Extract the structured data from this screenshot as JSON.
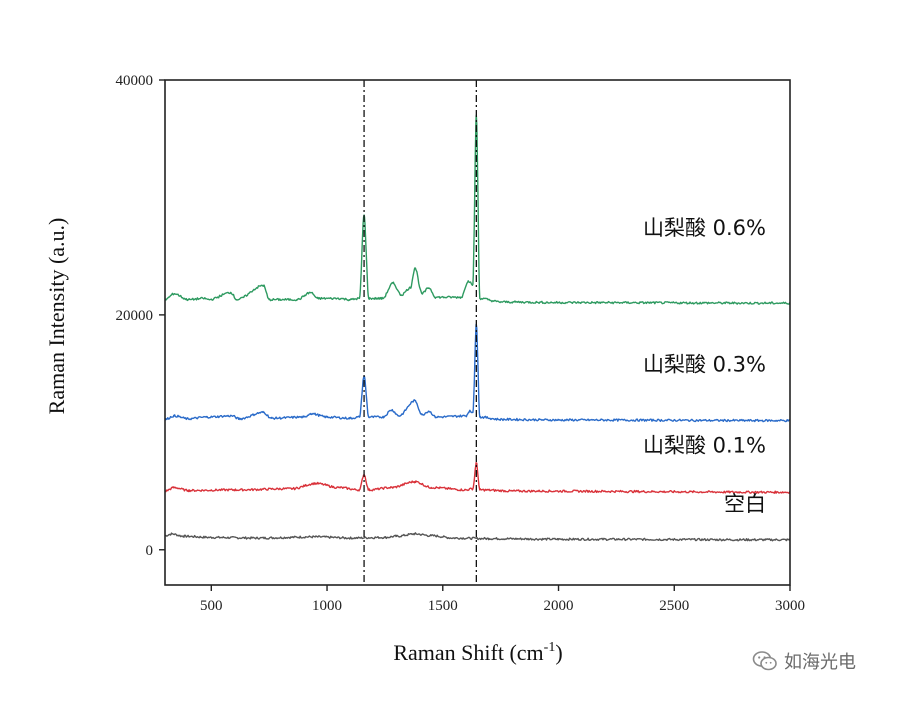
{
  "chart_data": {
    "type": "line",
    "title": "",
    "xlabel": "Raman Shift (cm",
    "xlabel_sup": "-1",
    "xlabel_close": ")",
    "ylabel": "Raman Intensity (a.u.)",
    "xlim": [
      300,
      3000
    ],
    "ylim": [
      -3000,
      40000
    ],
    "xticks": [
      500,
      1000,
      1500,
      2000,
      2500,
      3000
    ],
    "xticklabels": [
      "500",
      "1000",
      "1500",
      "2000",
      "2500",
      "3000"
    ],
    "yticks": [
      0,
      20000,
      40000
    ],
    "yticklabels": [
      "0",
      "20000",
      "40000"
    ],
    "reference_lines_x": [
      1160,
      1645
    ],
    "grid": false,
    "series": [
      {
        "name": "空白",
        "color": "#555555",
        "baseline": 900,
        "points": [
          [
            300,
            1200
          ],
          [
            330,
            1350
          ],
          [
            380,
            1150
          ],
          [
            500,
            1050
          ],
          [
            700,
            1000
          ],
          [
            950,
            1100
          ],
          [
            1100,
            1000
          ],
          [
            1250,
            1050
          ],
          [
            1300,
            1150
          ],
          [
            1380,
            1350
          ],
          [
            1450,
            1200
          ],
          [
            1550,
            1000
          ],
          [
            1700,
            950
          ],
          [
            2000,
            900
          ],
          [
            3000,
            850
          ]
        ]
      },
      {
        "name": "山梨酸 0.1%",
        "color": "#d9323a",
        "baseline": 5000,
        "points": [
          [
            300,
            5000
          ],
          [
            340,
            5300
          ],
          [
            400,
            5050
          ],
          [
            600,
            5100
          ],
          [
            850,
            5200
          ],
          [
            950,
            5650
          ],
          [
            1050,
            5300
          ],
          [
            1140,
            5100
          ],
          [
            1160,
            6400
          ],
          [
            1180,
            5100
          ],
          [
            1280,
            5300
          ],
          [
            1380,
            5800
          ],
          [
            1450,
            5300
          ],
          [
            1600,
            5100
          ],
          [
            1630,
            5200
          ],
          [
            1645,
            7400
          ],
          [
            1660,
            5100
          ],
          [
            1800,
            5000
          ],
          [
            3000,
            4900
          ]
        ]
      },
      {
        "name": "山梨酸 0.3%",
        "color": "#2a6bc9",
        "baseline": 11000,
        "points": [
          [
            300,
            11100
          ],
          [
            340,
            11400
          ],
          [
            400,
            11150
          ],
          [
            480,
            11300
          ],
          [
            590,
            11400
          ],
          [
            620,
            11150
          ],
          [
            725,
            11700
          ],
          [
            760,
            11200
          ],
          [
            900,
            11300
          ],
          [
            930,
            11600
          ],
          [
            1000,
            11300
          ],
          [
            1100,
            11200
          ],
          [
            1140,
            11300
          ],
          [
            1160,
            14800
          ],
          [
            1180,
            11300
          ],
          [
            1240,
            11300
          ],
          [
            1280,
            11900
          ],
          [
            1310,
            11400
          ],
          [
            1380,
            12700
          ],
          [
            1410,
            11500
          ],
          [
            1440,
            11800
          ],
          [
            1470,
            11300
          ],
          [
            1600,
            11400
          ],
          [
            1615,
            11800
          ],
          [
            1630,
            11700
          ],
          [
            1645,
            19200
          ],
          [
            1660,
            11300
          ],
          [
            1750,
            11100
          ],
          [
            2000,
            11050
          ],
          [
            3000,
            11000
          ]
        ]
      },
      {
        "name": "山梨酸 0.6%",
        "color": "#2e9a60",
        "baseline": 21000,
        "points": [
          [
            300,
            21300
          ],
          [
            340,
            21800
          ],
          [
            400,
            21300
          ],
          [
            470,
            21400
          ],
          [
            490,
            21300
          ],
          [
            585,
            21900
          ],
          [
            610,
            21300
          ],
          [
            725,
            22500
          ],
          [
            750,
            21300
          ],
          [
            870,
            21300
          ],
          [
            930,
            21900
          ],
          [
            960,
            21400
          ],
          [
            1050,
            21400
          ],
          [
            1100,
            21300
          ],
          [
            1140,
            21400
          ],
          [
            1160,
            28500
          ],
          [
            1180,
            21400
          ],
          [
            1240,
            21400
          ],
          [
            1285,
            22700
          ],
          [
            1320,
            21700
          ],
          [
            1360,
            22300
          ],
          [
            1380,
            24000
          ],
          [
            1410,
            21800
          ],
          [
            1440,
            22300
          ],
          [
            1470,
            21500
          ],
          [
            1580,
            21500
          ],
          [
            1610,
            22900
          ],
          [
            1630,
            22600
          ],
          [
            1645,
            37000
          ],
          [
            1660,
            21400
          ],
          [
            1750,
            21100
          ],
          [
            2000,
            21050
          ],
          [
            3000,
            21000
          ]
        ]
      }
    ]
  },
  "watermark": {
    "icon": "wechat-icon",
    "text": "如海光电"
  }
}
